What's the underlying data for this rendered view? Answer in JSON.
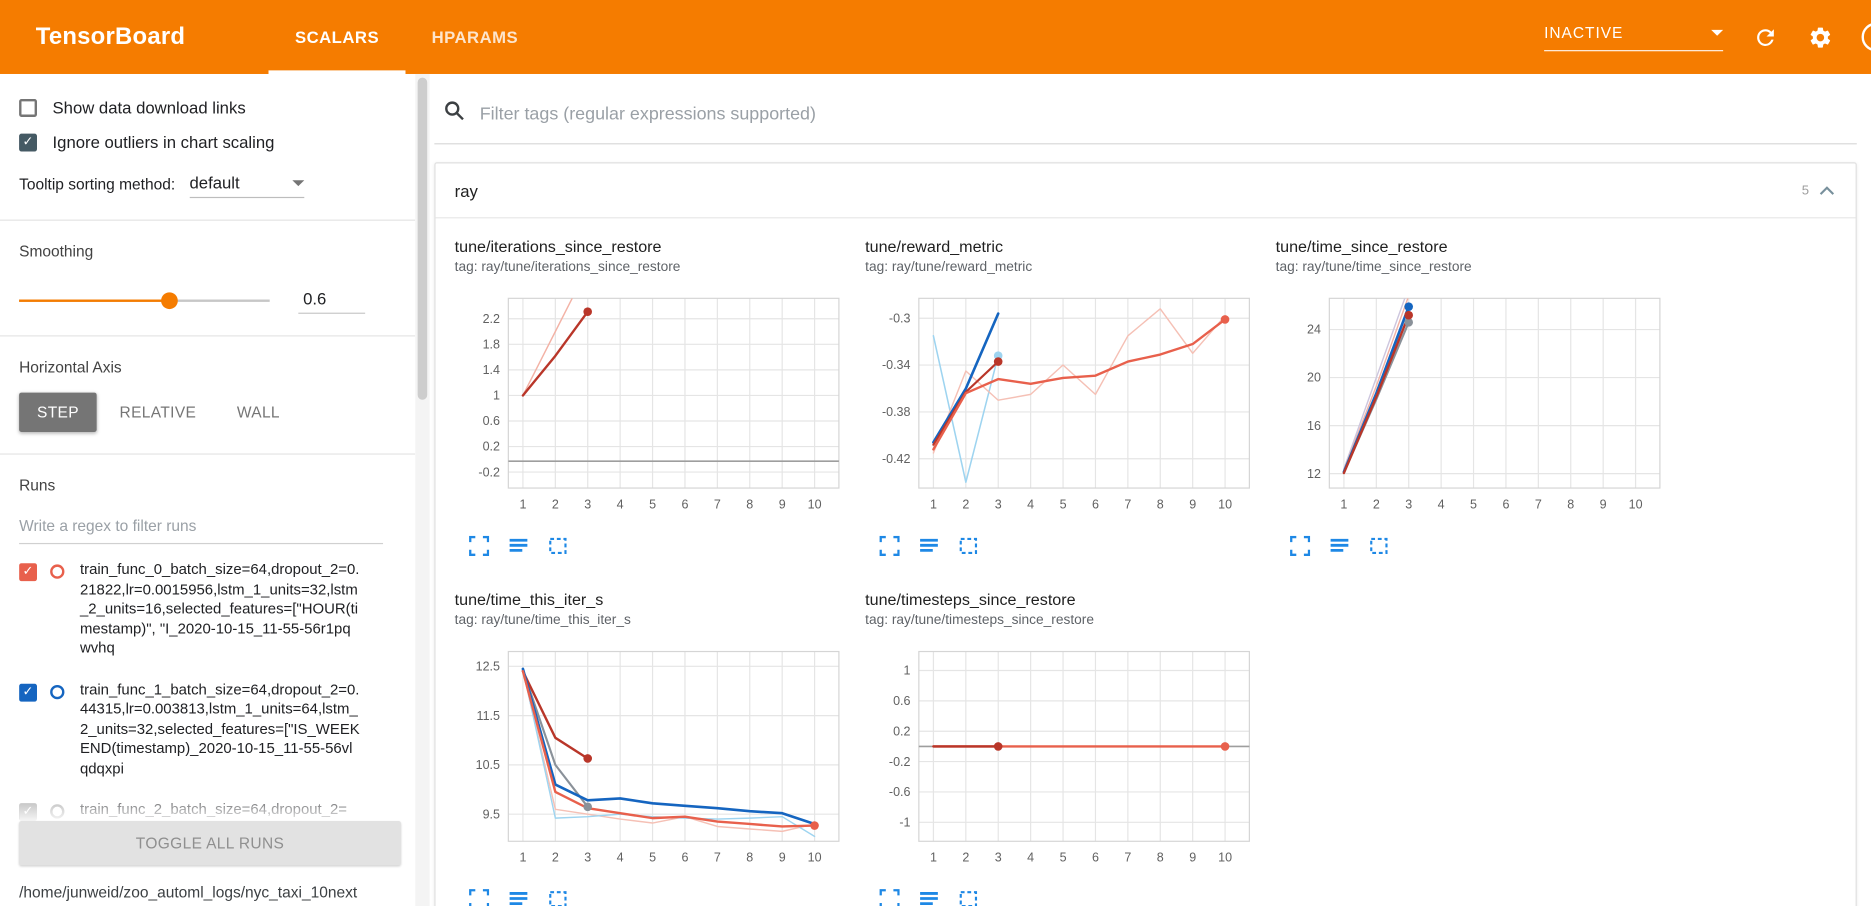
{
  "colors": {
    "header_bg": "#f57c00",
    "icon_blue": "#1e88e5",
    "checkbox_dark": "#455a64",
    "slider_orange": "#f57c00"
  },
  "icons": {
    "search": "magnifier",
    "refresh": "circular-arrow",
    "settings": "gear",
    "help": "circle-partial",
    "dropdown": "caret-down",
    "collapse": "chevron-up",
    "expand_chart": "corner-brackets",
    "run_selector": "horizontal-lines",
    "fit_domain": "dashed-box"
  },
  "header": {
    "title": "TensorBoard",
    "tabs": [
      {
        "label": "SCALARS",
        "active": true
      },
      {
        "label": "HPARAMS",
        "active": false
      }
    ],
    "status_dropdown": "INACTIVE"
  },
  "sidebar": {
    "checkboxes": [
      {
        "label": "Show data download links",
        "checked": false
      },
      {
        "label": "Ignore outliers in chart scaling",
        "checked": true
      }
    ],
    "tooltip_sorting": {
      "label": "Tooltip sorting method:",
      "value": "default"
    },
    "smoothing": {
      "label": "Smoothing",
      "value": "0.6",
      "percent": 60
    },
    "horizontal_axis": {
      "label": "Horizontal Axis",
      "options": [
        "STEP",
        "RELATIVE",
        "WALL"
      ],
      "selected": "STEP"
    },
    "runs_section": {
      "label": "Runs",
      "filter_placeholder": "Write a regex to filter runs",
      "runs": [
        {
          "label": "train_func_0_batch_size=64,dropout_2=0.21822,lr=0.0015956,lstm_1_units=32,lstm_2_units=16,selected_features=[\"HOUR(timestamp)\", \"I_2020-10-15_11-55-56r1pqwvhq",
          "checked": true,
          "color": "#e8604c"
        },
        {
          "label": "train_func_1_batch_size=64,dropout_2=0.44315,lr=0.003813,lstm_1_units=64,lstm_2_units=32,selected_features=[\"IS_WEEKEND(timestamp)_2020-10-15_11-55-56vlqdqxpi",
          "checked": true,
          "color": "#1565c0"
        },
        {
          "label": "train_func_2_batch_size=64,dropout_2=",
          "checked": true,
          "color": "#9e9e9e"
        }
      ],
      "toggle_all_label": "TOGGLE ALL RUNS",
      "log_path": "/home/junweid/zoo_automl_logs/nyc_taxi_10next"
    }
  },
  "main": {
    "filter_placeholder": "Filter tags (regular expressions supported)",
    "section": {
      "title": "ray",
      "count": "5"
    }
  },
  "chart_data": [
    {
      "type": "line",
      "title": "tune/iterations_since_restore",
      "tag": "tag: ray/tune/iterations_since_restore",
      "xlim": [
        0.55,
        10.75
      ],
      "xticks": [
        1,
        2,
        3,
        4,
        5,
        6,
        7,
        8,
        9,
        10
      ],
      "ylim": [
        -0.45,
        2.52
      ],
      "yticks": [
        -0.2,
        0.2,
        0.6,
        1,
        1.4,
        1.8,
        2.2
      ],
      "grid": true,
      "legend": "none",
      "series": [
        {
          "name": "run0-raw",
          "color": "#f3b2a5",
          "width": 1.2,
          "points": [
            [
              1,
              1
            ],
            [
              2,
              2
            ],
            [
              3,
              3
            ]
          ]
        },
        {
          "name": "run2-flat-zero",
          "color": "#9e9e9e",
          "width": 1.4,
          "points": [
            [
              0.55,
              -0.03
            ],
            [
              10.75,
              -0.03
            ]
          ]
        },
        {
          "name": "run0-smoothed",
          "color": "#b93629",
          "width": 2,
          "points": [
            [
              1,
              1
            ],
            [
              2,
              1.62
            ],
            [
              3,
              2.31
            ]
          ],
          "end_dot": true
        }
      ]
    },
    {
      "type": "line",
      "title": "tune/reward_metric",
      "tag": "tag: ray/tune/reward_metric",
      "xlim": [
        0.55,
        10.75
      ],
      "xticks": [
        1,
        2,
        3,
        4,
        5,
        6,
        7,
        8,
        9,
        10
      ],
      "ylim": [
        -0.445,
        -0.283
      ],
      "yticks": [
        -0.42,
        -0.38,
        -0.34,
        -0.3
      ],
      "grid": true,
      "legend": "none",
      "series": [
        {
          "name": "run1-raw",
          "color": "#9ed4f0",
          "width": 1.3,
          "points": [
            [
              1,
              -0.315
            ],
            [
              2,
              -0.44
            ],
            [
              3,
              -0.332
            ]
          ],
          "end_dot": true
        },
        {
          "name": "run0-raw",
          "color": "#f5c0b5",
          "width": 1.2,
          "points": [
            [
              1,
              -0.415
            ],
            [
              2,
              -0.345
            ],
            [
              3,
              -0.37
            ],
            [
              4,
              -0.365
            ],
            [
              5,
              -0.34
            ],
            [
              6,
              -0.365
            ],
            [
              7,
              -0.315
            ],
            [
              8,
              -0.292
            ],
            [
              9,
              -0.33
            ],
            [
              10,
              -0.298
            ]
          ]
        },
        {
          "name": "run1-smoothed",
          "color": "#1565c0",
          "width": 2.2,
          "points": [
            [
              1,
              -0.406
            ],
            [
              2,
              -0.36
            ],
            [
              3,
              -0.296
            ]
          ]
        },
        {
          "name": "run2-smoothed",
          "color": "#b93629",
          "width": 1.8,
          "points": [
            [
              1,
              -0.408
            ],
            [
              2,
              -0.363
            ],
            [
              3,
              -0.337
            ]
          ],
          "end_dot": true
        },
        {
          "name": "run0-smoothed",
          "color": "#e8604c",
          "width": 2,
          "points": [
            [
              1,
              -0.412
            ],
            [
              2,
              -0.364
            ],
            [
              3,
              -0.352
            ],
            [
              4,
              -0.356
            ],
            [
              5,
              -0.351
            ],
            [
              6,
              -0.349
            ],
            [
              7,
              -0.337
            ],
            [
              8,
              -0.331
            ],
            [
              9,
              -0.322
            ],
            [
              10,
              -0.301
            ]
          ],
          "end_dot": true
        }
      ]
    },
    {
      "type": "line",
      "title": "tune/time_since_restore",
      "tag": "tag: ray/tune/time_since_restore",
      "xlim": [
        0.55,
        10.75
      ],
      "xticks": [
        1,
        2,
        3,
        4,
        5,
        6,
        7,
        8,
        9,
        10
      ],
      "ylim": [
        10.8,
        26.6
      ],
      "yticks": [
        12,
        16,
        20,
        24
      ],
      "grid": true,
      "legend": "none",
      "series": [
        {
          "name": "raw-a",
          "color": "#cdc6de",
          "width": 1.2,
          "points": [
            [
              1,
              12.4
            ],
            [
              2,
              20
            ],
            [
              3,
              27.5
            ]
          ]
        },
        {
          "name": "raw-b",
          "color": "#f3b2a5",
          "width": 1.2,
          "points": [
            [
              1,
              12.3
            ],
            [
              2,
              19.3
            ],
            [
              3,
              26.8
            ]
          ]
        },
        {
          "name": "run2-smoothed",
          "color": "#8a9199",
          "width": 1.8,
          "points": [
            [
              1,
              12.1
            ],
            [
              2,
              18.2
            ],
            [
              3,
              24.6
            ]
          ],
          "end_dot": true
        },
        {
          "name": "run1-smoothed",
          "color": "#1565c0",
          "width": 2.2,
          "points": [
            [
              1,
              12.15
            ],
            [
              2,
              18.7
            ],
            [
              3,
              25.9
            ]
          ],
          "end_dot": true
        },
        {
          "name": "run0-smoothed",
          "color": "#b93629",
          "width": 2,
          "points": [
            [
              1,
              12.05
            ],
            [
              2,
              18.4
            ],
            [
              3,
              25.2
            ]
          ],
          "end_dot": true
        }
      ]
    },
    {
      "type": "line",
      "title": "tune/time_this_iter_s",
      "tag": "tag: ray/tune/time_this_iter_s",
      "xlim": [
        0.55,
        10.75
      ],
      "xticks": [
        1,
        2,
        3,
        4,
        5,
        6,
        7,
        8,
        9,
        10
      ],
      "ylim": [
        8.95,
        12.8
      ],
      "yticks": [
        9.5,
        10.5,
        11.5,
        12.5
      ],
      "grid": true,
      "legend": "none",
      "series": [
        {
          "name": "run0-raw",
          "color": "#f5c0b5",
          "width": 1.2,
          "points": [
            [
              1,
              12.4
            ],
            [
              2,
              9.6
            ],
            [
              3,
              9.5
            ],
            [
              4,
              9.4
            ],
            [
              5,
              9.32
            ],
            [
              6,
              9.45
            ],
            [
              7,
              9.25
            ],
            [
              8,
              9.2
            ],
            [
              9,
              9.15
            ],
            [
              10,
              9.3
            ]
          ]
        },
        {
          "name": "run1-raw",
          "color": "#9ed4f0",
          "width": 1.2,
          "points": [
            [
              1,
              12.45
            ],
            [
              2,
              9.42
            ],
            [
              3,
              9.45
            ],
            [
              4,
              9.5
            ],
            [
              5,
              9.45
            ],
            [
              6,
              9.42
            ],
            [
              7,
              9.4
            ],
            [
              8,
              9.42
            ],
            [
              9,
              9.45
            ],
            [
              10,
              9.05
            ]
          ]
        },
        {
          "name": "run2-smoothed",
          "color": "#8a9199",
          "width": 1.8,
          "points": [
            [
              1,
              12.42
            ],
            [
              2,
              10.5
            ],
            [
              3,
              9.65
            ]
          ],
          "end_dot": true
        },
        {
          "name": "run-darkred-smoothed",
          "color": "#b93629",
          "width": 2,
          "points": [
            [
              1,
              12.4
            ],
            [
              2,
              11.05
            ],
            [
              3,
              10.63
            ]
          ],
          "end_dot": true
        },
        {
          "name": "run1-smoothed",
          "color": "#1565c0",
          "width": 2.2,
          "points": [
            [
              1,
              12.45
            ],
            [
              2,
              10.1
            ],
            [
              3,
              9.78
            ],
            [
              4,
              9.82
            ],
            [
              5,
              9.72
            ],
            [
              6,
              9.67
            ],
            [
              7,
              9.62
            ],
            [
              8,
              9.56
            ],
            [
              9,
              9.52
            ],
            [
              10,
              9.3
            ]
          ]
        },
        {
          "name": "run0-smoothed",
          "color": "#e8604c",
          "width": 2,
          "points": [
            [
              1,
              12.4
            ],
            [
              2,
              9.95
            ],
            [
              3,
              9.62
            ],
            [
              4,
              9.52
            ],
            [
              5,
              9.42
            ],
            [
              6,
              9.45
            ],
            [
              7,
              9.35
            ],
            [
              8,
              9.3
            ],
            [
              9,
              9.25
            ],
            [
              10,
              9.27
            ]
          ],
          "end_dot": true
        }
      ]
    },
    {
      "type": "line",
      "title": "tune/timesteps_since_restore",
      "tag": "tag: ray/tune/timesteps_since_restore",
      "xlim": [
        0.55,
        10.75
      ],
      "xticks": [
        1,
        2,
        3,
        4,
        5,
        6,
        7,
        8,
        9,
        10
      ],
      "ylim": [
        -1.25,
        1.25
      ],
      "yticks": [
        -1,
        -0.6,
        -0.2,
        0.2,
        0.6,
        1
      ],
      "grid": true,
      "legend": "none",
      "series": [
        {
          "name": "run2-flat-zero",
          "color": "#9e9e9e",
          "width": 1.4,
          "points": [
            [
              0.55,
              0
            ],
            [
              10.75,
              0
            ]
          ]
        },
        {
          "name": "run0-smoothed",
          "color": "#e8604c",
          "width": 2,
          "points": [
            [
              1,
              0
            ],
            [
              10,
              0
            ]
          ],
          "end_dot": true
        },
        {
          "name": "run-darkred-smoothed",
          "color": "#b93629",
          "width": 2,
          "points": [
            [
              1,
              0
            ],
            [
              3,
              0
            ]
          ],
          "end_dot": true
        }
      ]
    }
  ]
}
